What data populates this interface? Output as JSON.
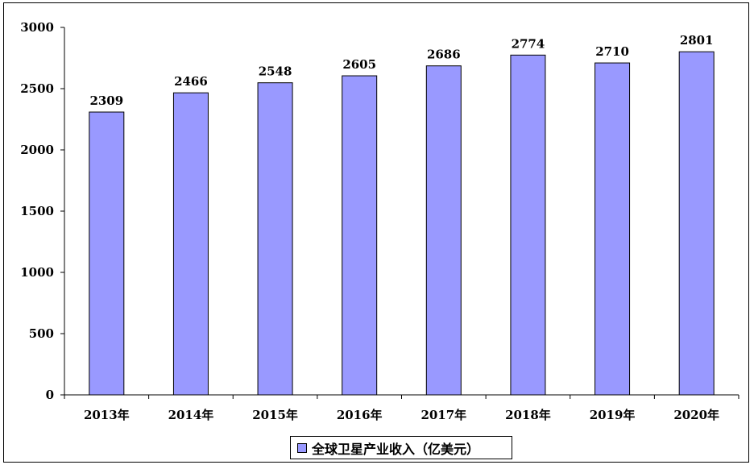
{
  "chart_data": {
    "type": "bar",
    "categories": [
      "2013年",
      "2014年",
      "2015年",
      "2016年",
      "2017年",
      "2018年",
      "2019年",
      "2020年"
    ],
    "series": [
      {
        "name": "全球卫星产业收入（亿美元）",
        "values": [
          2309,
          2466,
          2548,
          2605,
          2686,
          2774,
          2710,
          2801
        ],
        "color": "#9999ff"
      }
    ],
    "data_labels": [
      "2309",
      "2466",
      "2548",
      "2605",
      "2686",
      "2774",
      "2710",
      "2801"
    ],
    "y_ticks": [
      0,
      500,
      1000,
      1500,
      2000,
      2500,
      3000
    ],
    "ylim": [
      0,
      3000
    ],
    "grid": false,
    "legend": {
      "position": "bottom",
      "label": "全球卫星产业收入（亿美元）"
    }
  }
}
